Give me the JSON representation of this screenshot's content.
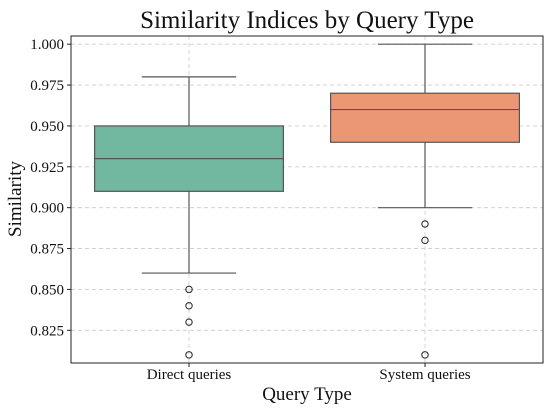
{
  "chart_data": {
    "type": "box",
    "title": "Similarity Indices by Query Type",
    "xlabel": "Query Type",
    "ylabel": "Similarity",
    "ylim": [
      0.805,
      1.005
    ],
    "yticks": [
      0.825,
      0.85,
      0.875,
      0.9,
      0.925,
      0.95,
      0.975,
      1.0
    ],
    "ytick_labels": [
      "0.825",
      "0.850",
      "0.875",
      "0.900",
      "0.925",
      "0.950",
      "0.975",
      "1.000"
    ],
    "grid": true,
    "categories": [
      "Direct queries",
      "System queries"
    ],
    "series": [
      {
        "name": "Direct queries",
        "color": "#72b8a1",
        "whisker_low": 0.86,
        "q1": 0.91,
        "median": 0.93,
        "q3": 0.95,
        "whisker_high": 0.98,
        "outliers": [
          0.85,
          0.84,
          0.83,
          0.81
        ]
      },
      {
        "name": "System queries",
        "color": "#ec9774",
        "whisker_low": 0.9,
        "q1": 0.94,
        "median": 0.96,
        "q3": 0.97,
        "whisker_high": 1.0,
        "outliers": [
          0.89,
          0.88,
          0.81
        ]
      }
    ]
  }
}
